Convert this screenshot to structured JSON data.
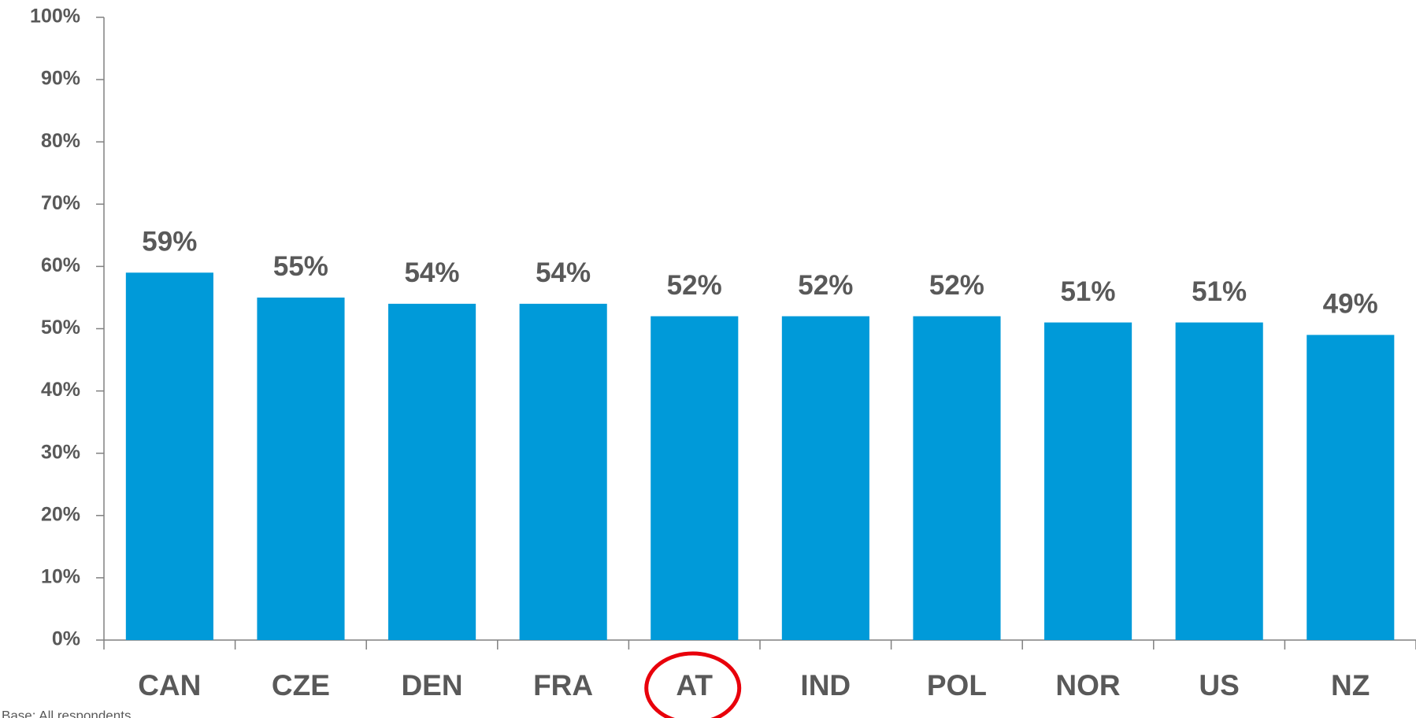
{
  "chart_data": {
    "type": "bar",
    "categories": [
      "CAN",
      "CZE",
      "DEN",
      "FRA",
      "AT",
      "IND",
      "POL",
      "NOR",
      "US",
      "NZ"
    ],
    "values": [
      59,
      55,
      54,
      54,
      52,
      52,
      52,
      51,
      51,
      49
    ],
    "value_labels": [
      "59%",
      "55%",
      "54%",
      "54%",
      "52%",
      "52%",
      "52%",
      "51%",
      "51%",
      "49%"
    ],
    "color": "#009ad9",
    "ylim": [
      0,
      100
    ],
    "yticks": [
      {
        "value": 0,
        "label": "0%"
      },
      {
        "value": 10,
        "label": "10%"
      },
      {
        "value": 20,
        "label": "20%"
      },
      {
        "value": 30,
        "label": "30%"
      },
      {
        "value": 40,
        "label": "40%"
      },
      {
        "value": 50,
        "label": "50%"
      },
      {
        "value": 60,
        "label": "60%"
      },
      {
        "value": 70,
        "label": "70%"
      },
      {
        "value": 80,
        "label": "80%"
      },
      {
        "value": 90,
        "label": "90%"
      },
      {
        "value": 100,
        "label": "100%"
      }
    ],
    "grid": false,
    "highlight": "AT",
    "footnote": "Base: All respondents"
  }
}
